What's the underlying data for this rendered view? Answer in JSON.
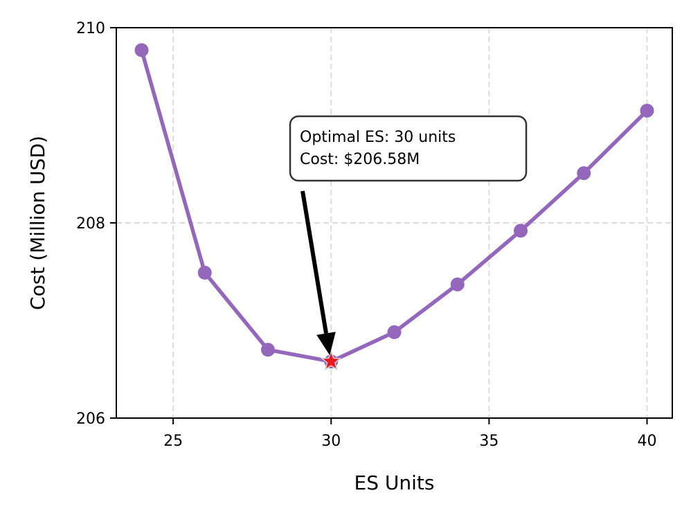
{
  "chart_data": {
    "type": "line",
    "xlabel": "ES Units",
    "ylabel": "Cost (Million USD)",
    "xlim": [
      23.2,
      40.8
    ],
    "ylim": [
      206,
      210
    ],
    "x_ticks": [
      25,
      30,
      35,
      40
    ],
    "y_ticks": [
      206,
      208,
      210
    ],
    "grid": true,
    "series": [
      {
        "color": "#9467bd",
        "x": [
          24,
          26,
          28,
          30,
          32,
          34,
          36,
          38,
          40
        ],
        "y": [
          209.77,
          207.49,
          206.7,
          206.58,
          206.88,
          207.37,
          207.92,
          208.51,
          209.15
        ]
      }
    ],
    "optimal": {
      "x": 30,
      "y": 206.58,
      "color": "#e8191f"
    },
    "annotation": {
      "lines": [
        "Optimal ES: 30 units",
        "Cost: $206.58M"
      ]
    }
  }
}
